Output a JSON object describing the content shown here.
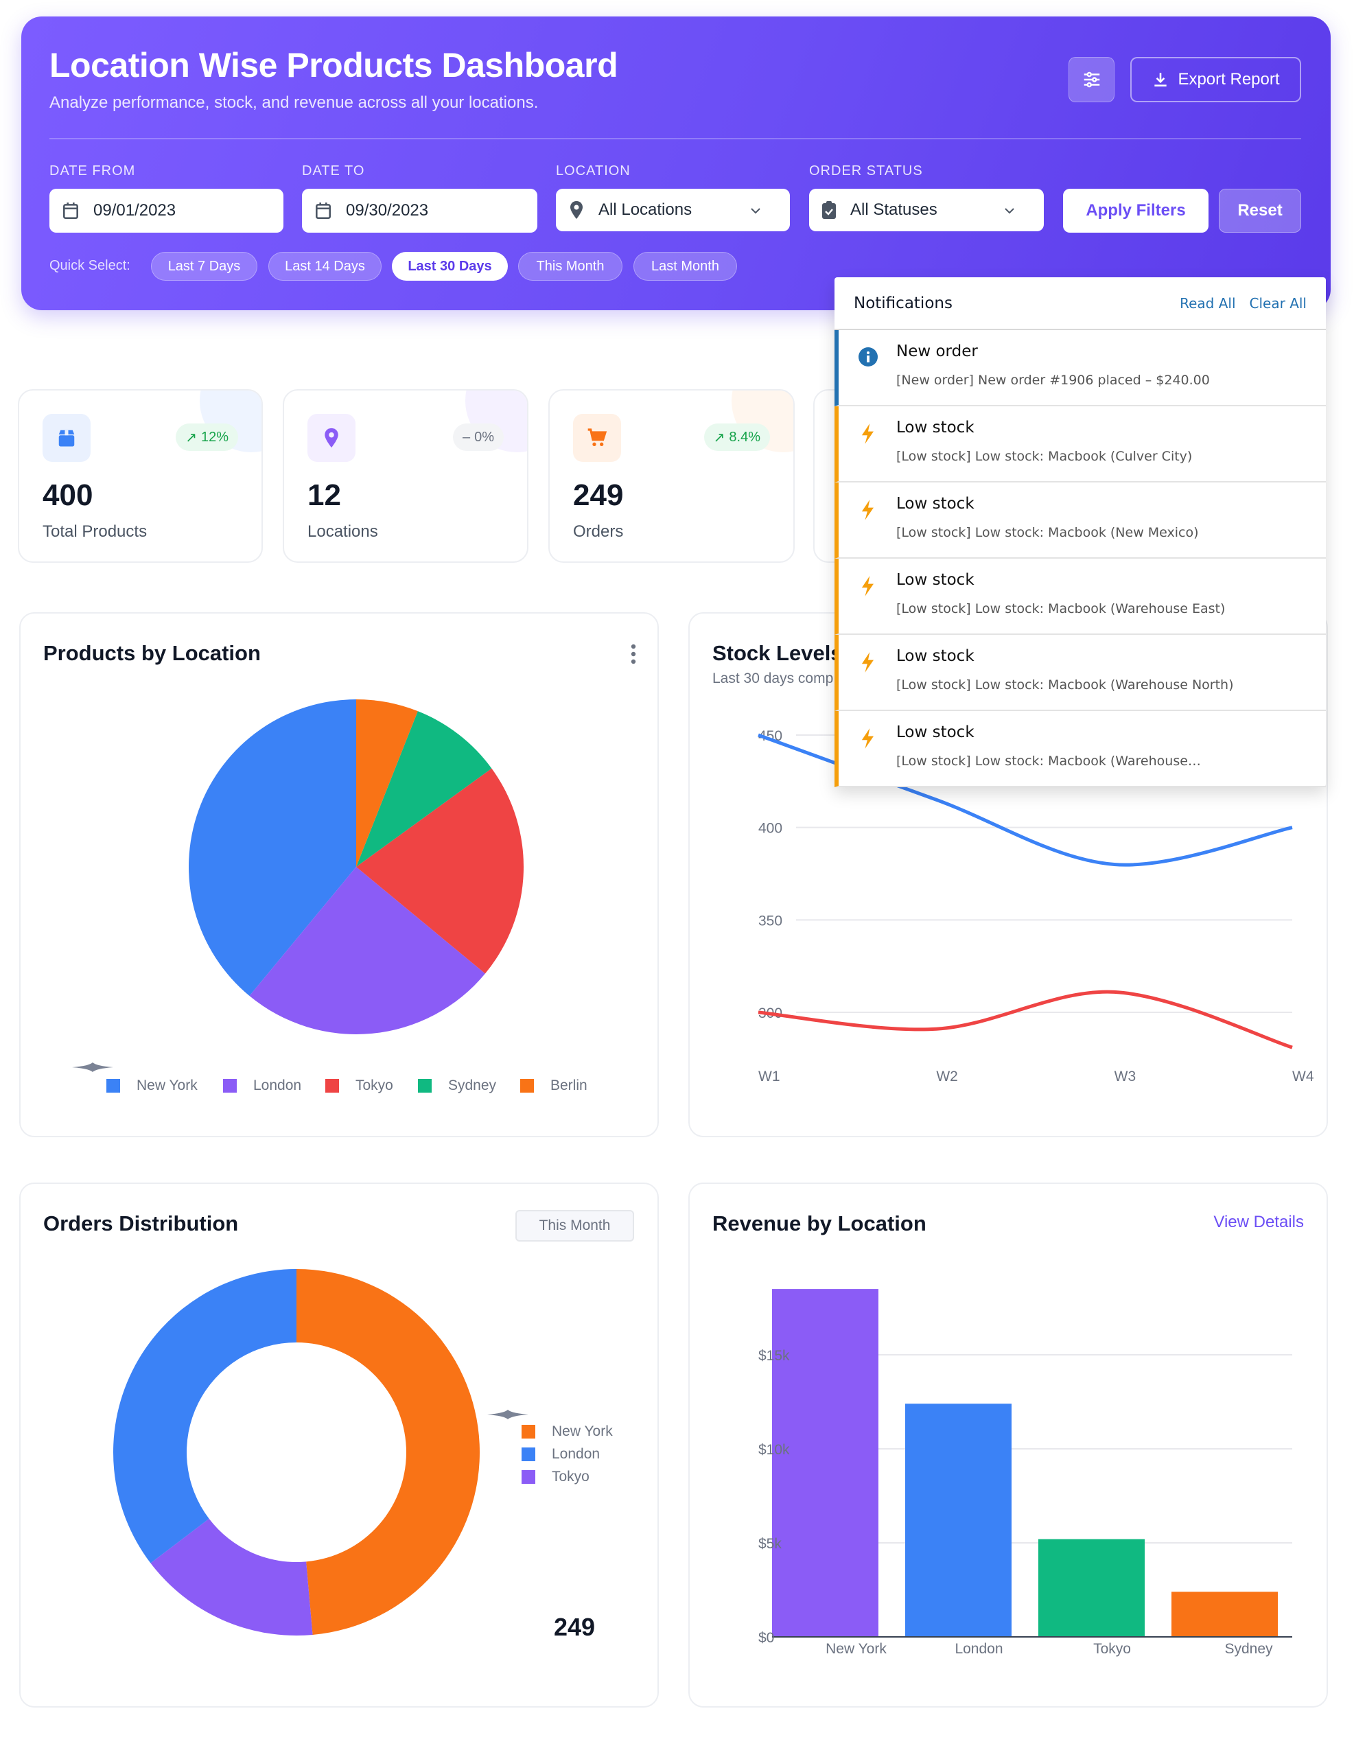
{
  "header": {
    "title": "Location Wise Products Dashboard",
    "subtitle": "Analyze performance, stock, and revenue across all your locations.",
    "export_label": "Export Report",
    "filter_icon": "sliders-icon",
    "accent": "#6b4ef5"
  },
  "filters": {
    "date_from": {
      "label": "DATE FROM",
      "value": "09/01/2023"
    },
    "date_to": {
      "label": "DATE TO",
      "value": "09/30/2023"
    },
    "location": {
      "label": "LOCATION",
      "value": "All Locations"
    },
    "order_status": {
      "label": "ORDER STATUS",
      "value": "All Statuses"
    },
    "apply_label": "Apply Filters",
    "reset_label": "Reset",
    "quick_select_label": "Quick Select:",
    "quick": [
      "Last 7 Days",
      "Last 14 Days",
      "Last 30 Days",
      "This Month",
      "Last Month"
    ],
    "quick_active": "Last 30 Days"
  },
  "stats": [
    {
      "value": "400",
      "label": "Total Products",
      "change": "12%",
      "trend": "up",
      "icon": "box-icon",
      "color": "#3b82f6"
    },
    {
      "value": "12",
      "label": "Locations",
      "change": "0%",
      "trend": "flat",
      "icon": "map-pin-icon",
      "color": "#8b5cf6"
    },
    {
      "value": "249",
      "label": "Orders",
      "change": "8.4%",
      "trend": "up",
      "icon": "cart-icon",
      "color": "#f97316"
    }
  ],
  "notifications": {
    "title": "Notifications",
    "read_all": "Read All",
    "clear_all": "Clear All",
    "items": [
      {
        "type": "info",
        "title": "New order",
        "text": "[New order] New order #1906 placed – $240.00",
        "color": "#2271b1"
      },
      {
        "type": "warning",
        "title": "Low stock",
        "text": "[Low stock] Low stock: Macbook (Culver City)",
        "color": "#f59e0b"
      },
      {
        "type": "warning",
        "title": "Low stock",
        "text": "[Low stock] Low stock: Macbook (New Mexico)",
        "color": "#f59e0b"
      },
      {
        "type": "warning",
        "title": "Low stock",
        "text": "[Low stock] Low stock: Macbook (Warehouse East)",
        "color": "#f59e0b"
      },
      {
        "type": "warning",
        "title": "Low stock",
        "text": "[Low stock] Low stock: Macbook (Warehouse North)",
        "color": "#f59e0b"
      },
      {
        "type": "warning",
        "title": "Low stock",
        "text": "[Low stock] Low stock: Macbook (Warehouse…",
        "color": "#f59e0b"
      }
    ]
  },
  "panels": {
    "products": {
      "title": "Products by Location"
    },
    "stock": {
      "title": "Stock Levels",
      "subtitle": "Last 30 days comp"
    },
    "orders": {
      "title": "Orders Distribution",
      "period": "This Month",
      "total": "249"
    },
    "revenue": {
      "title": "Revenue by Location",
      "link": "View Details"
    }
  },
  "chart_data": [
    {
      "type": "pie",
      "categories": [
        "New York",
        "London",
        "Tokyo",
        "Sydney",
        "Berlin"
      ],
      "values": [
        39,
        25,
        21,
        9,
        6
      ],
      "colors": [
        "#3b82f6",
        "#8b5cf6",
        "#ef4444",
        "#10b981",
        "#f97316"
      ],
      "legend": "bottom"
    },
    {
      "type": "line",
      "x": [
        "W1",
        "W2",
        "W3",
        "W4"
      ],
      "series": [
        {
          "values": [
            450,
            415,
            380,
            400
          ],
          "color": "#3b82f6"
        },
        {
          "values": [
            300,
            291,
            311,
            281
          ],
          "color": "#ef4444"
        }
      ],
      "yticks": [
        450,
        400,
        350,
        300
      ],
      "ylim": [
        270,
        460
      ],
      "grid": true
    },
    {
      "type": "pie",
      "donut": true,
      "categories": [
        "New York",
        "London",
        "Tokyo"
      ],
      "values": [
        121,
        88,
        40
      ],
      "colors": [
        "#f97316",
        "#3b82f6",
        "#8b5cf6"
      ],
      "legend": "right"
    },
    {
      "type": "bar",
      "categories": [
        "New York",
        "London",
        "Tokyo",
        "Sydney"
      ],
      "values": [
        18500,
        12400,
        5200,
        2400
      ],
      "colors": [
        "#8b5cf6",
        "#3b82f6",
        "#10b981",
        "#f97316"
      ],
      "yticks": [
        "$0",
        "$5k",
        "$10k",
        "$15k"
      ],
      "ytick_values": [
        0,
        5000,
        10000,
        15000
      ],
      "ylim": [
        0,
        20000
      ],
      "grid": true
    }
  ]
}
